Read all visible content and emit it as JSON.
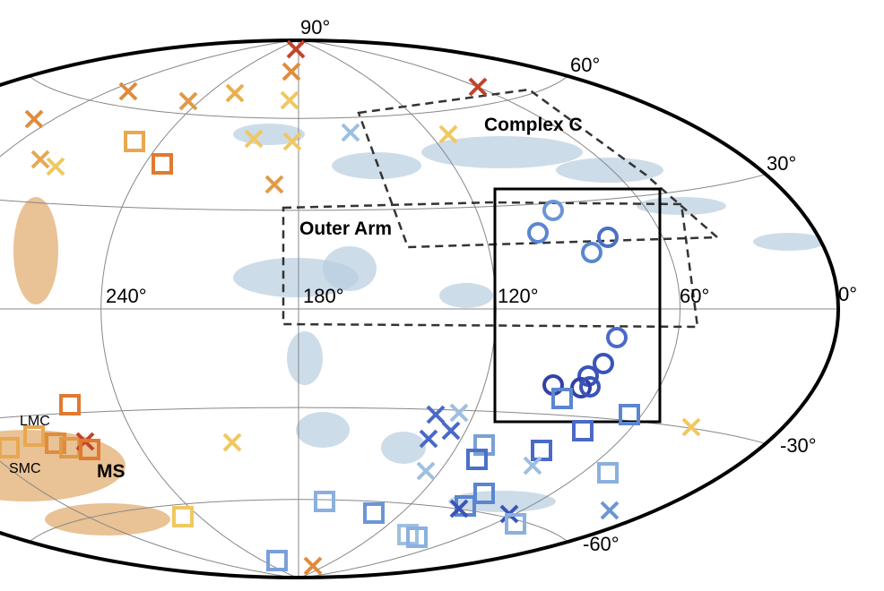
{
  "latitude_labels": [
    "90°",
    "60°",
    "30°",
    "0°",
    "-30°",
    "-60°"
  ],
  "longitude_labels": [
    "240°",
    "180°",
    "120°",
    "60°"
  ],
  "regions": [
    "Complex C",
    "Outer Arm"
  ],
  "objects": [
    "LMC",
    "SMC",
    "MS"
  ]
}
